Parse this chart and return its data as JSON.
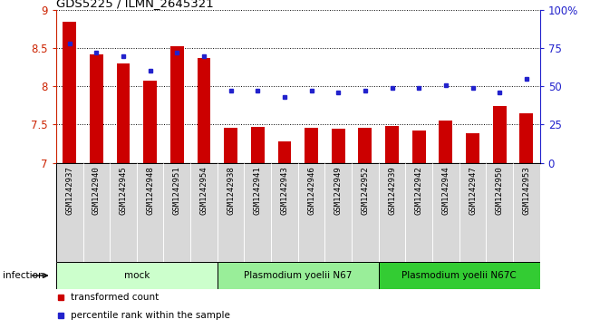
{
  "title": "GDS5225 / ILMN_2645321",
  "samples": [
    "GSM1242937",
    "GSM1242940",
    "GSM1242945",
    "GSM1242948",
    "GSM1242951",
    "GSM1242954",
    "GSM1242938",
    "GSM1242941",
    "GSM1242943",
    "GSM1242946",
    "GSM1242949",
    "GSM1242952",
    "GSM1242939",
    "GSM1242942",
    "GSM1242944",
    "GSM1242947",
    "GSM1242950",
    "GSM1242953"
  ],
  "bar_values": [
    8.85,
    8.42,
    8.3,
    8.07,
    8.52,
    8.37,
    7.46,
    7.47,
    7.28,
    7.46,
    7.45,
    7.46,
    7.48,
    7.42,
    7.55,
    7.39,
    7.74,
    7.65
  ],
  "dot_values": [
    78,
    72,
    70,
    60,
    72,
    70,
    47,
    47,
    43,
    47,
    46,
    47,
    49,
    49,
    51,
    49,
    46,
    55
  ],
  "ylim": [
    7.0,
    9.0
  ],
  "y2lim": [
    0,
    100
  ],
  "bar_color": "#cc0000",
  "dot_color": "#2222cc",
  "bar_bottom": 7.0,
  "groups": [
    {
      "label": "mock",
      "start": 0,
      "end": 6,
      "color": "#ccffcc"
    },
    {
      "label": "Plasmodium yoelii N67",
      "start": 6,
      "end": 12,
      "color": "#99ee99"
    },
    {
      "label": "Plasmodium yoelii N67C",
      "start": 12,
      "end": 18,
      "color": "#33cc33"
    }
  ],
  "infection_label": "infection",
  "xlabel_fontsize": 6.5,
  "ytick_color": "#cc2200",
  "y2tick_color": "#2222cc",
  "ytick_vals": [
    7.0,
    7.5,
    8.0,
    8.5,
    9.0
  ],
  "ytick_labels": [
    "7",
    "7.5",
    "8",
    "8.5",
    "9"
  ],
  "y2tick_vals": [
    0,
    25,
    50,
    75,
    100
  ],
  "y2tick_labels": [
    "0",
    "25",
    "50",
    "75",
    "100%"
  ],
  "grid_color": "black",
  "cell_bg": "#d8d8d8",
  "bar_width": 0.5
}
